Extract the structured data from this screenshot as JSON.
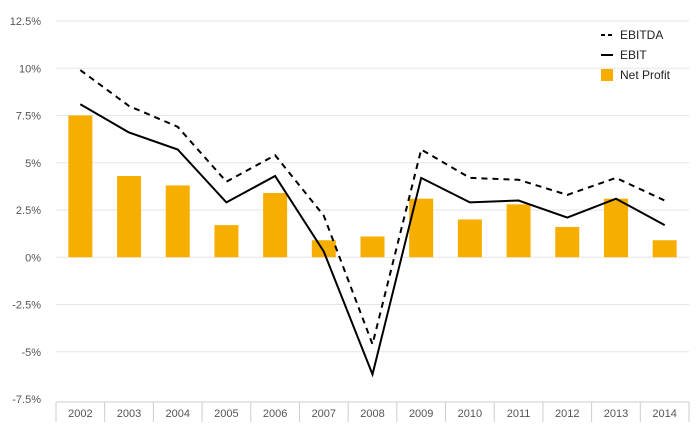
{
  "chart_data": {
    "type": "bar",
    "categories": [
      "2002",
      "2003",
      "2004",
      "2005",
      "2006",
      "2007",
      "2008",
      "2009",
      "2010",
      "2011",
      "2012",
      "2013",
      "2014"
    ],
    "series": [
      {
        "name": "EBITDA",
        "kind": "line",
        "style": "dashed",
        "color": "#000000",
        "values": [
          9.9,
          8.0,
          6.9,
          4.0,
          5.4,
          2.2,
          -4.6,
          5.7,
          4.2,
          4.1,
          3.3,
          4.2,
          3.0
        ]
      },
      {
        "name": "EBIT",
        "kind": "line",
        "style": "solid",
        "color": "#000000",
        "values": [
          8.1,
          6.6,
          5.7,
          2.9,
          4.3,
          0.3,
          -6.2,
          4.2,
          2.9,
          3.0,
          2.1,
          3.1,
          1.7
        ]
      },
      {
        "name": "Net Profit",
        "kind": "bar",
        "color": "#f6ae00",
        "values": [
          7.5,
          4.3,
          3.8,
          1.7,
          3.4,
          0.9,
          1.1,
          3.1,
          2.0,
          2.8,
          1.6,
          3.1,
          0.9
        ]
      }
    ],
    "y_ticks": [
      "12.5%",
      "10%",
      "7.5%",
      "5%",
      "2.5%",
      "0%",
      "-2.5%",
      "-5%",
      "-7.5%"
    ],
    "y_tick_values": [
      12.5,
      10,
      7.5,
      5,
      2.5,
      0,
      -2.5,
      -5,
      -7.5
    ],
    "ylim": [
      -7.5,
      12.5
    ],
    "grid": true,
    "legend_position": "top-right",
    "title": "",
    "xlabel": "",
    "ylabel": ""
  }
}
